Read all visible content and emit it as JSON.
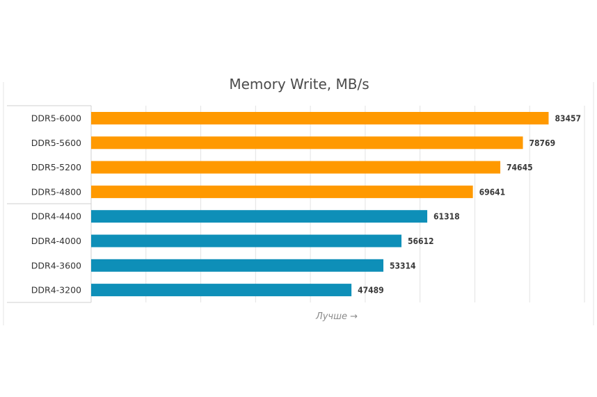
{
  "chart_data": {
    "type": "bar",
    "orientation": "horizontal",
    "title": "Memory Write, MB/s",
    "xlabel": "Лучше →",
    "ylabel": "",
    "categories": [
      "DDR5-6000",
      "DDR5-5600",
      "DDR5-5200",
      "DDR5-4800",
      "DDR4-4400",
      "DDR4-4000",
      "DDR4-3600",
      "DDR4-3200"
    ],
    "values": [
      83457,
      78769,
      74645,
      69641,
      61318,
      56612,
      53314,
      47489
    ],
    "value_labels": [
      "83457",
      "78769",
      "74645",
      "69641",
      "61318",
      "56612",
      "53314",
      "47489"
    ],
    "bar_colors": [
      "#ff9900",
      "#ff9900",
      "#ff9900",
      "#ff9900",
      "#0e8fb8",
      "#0e8fb8",
      "#0e8fb8",
      "#0e8fb8"
    ],
    "xlim": [
      0,
      90000
    ],
    "grid": true,
    "legend": "none"
  }
}
